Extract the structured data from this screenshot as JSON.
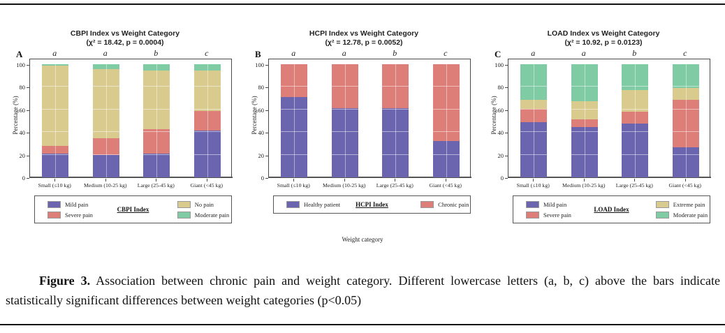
{
  "page": {
    "weight_category_label": "Weight category"
  },
  "caption": {
    "figure_label": "Figure 3.",
    "text": " Association between chronic pain and weight category. Different lowercase letters (a, b, c) above the bars indicate statistically significant differences between weight categories (p<0.05)"
  },
  "colors": {
    "purple": "#6b64ae",
    "salmon": "#dd7f78",
    "khaki": "#d9ca8e",
    "green": "#7fcba4"
  },
  "chart_data": [
    {
      "type": "bar",
      "stacked": true,
      "panel_letter": "A",
      "title": "CBPI Index vs Weight Category",
      "subtitle": "(χ² = 18.42, p = 0.0004)",
      "significance_letters": [
        "a",
        "a",
        "b",
        "c"
      ],
      "categories": [
        "Small (≤10 kg)",
        "Medium (10-25 kg)",
        "Large (25-45 kg)",
        "Giant (<45 kg)"
      ],
      "ylabel": "Percentage (%)",
      "yticks": [
        0,
        20,
        40,
        60,
        80,
        100
      ],
      "ylim": [
        0,
        100
      ],
      "grid": true,
      "series": [
        {
          "name": "Mild pain",
          "color": "purple",
          "values": [
            21,
            20,
            21,
            41.5
          ]
        },
        {
          "name": "Severe pain",
          "color": "salmon",
          "values": [
            6.5,
            14.5,
            21.5,
            17
          ]
        },
        {
          "name": "No pain",
          "color": "khaki",
          "values": [
            71,
            61,
            52,
            36
          ]
        },
        {
          "name": "Moderate pain",
          "color": "green",
          "values": [
            1.5,
            4.5,
            5.5,
            5.5
          ]
        }
      ],
      "legend": {
        "title": "CBPI Index",
        "position": "below",
        "left_column": [
          {
            "label": "Mild pain",
            "color": "purple"
          },
          {
            "label": "Severe pain",
            "color": "salmon"
          }
        ],
        "right_column": [
          {
            "label": "No pain",
            "color": "khaki"
          },
          {
            "label": "Moderate pain",
            "color": "green"
          }
        ]
      }
    },
    {
      "type": "bar",
      "stacked": true,
      "panel_letter": "B",
      "title": "HCPI Index vs Weight Category",
      "subtitle": "(χ² = 12.78, p = 0.0052)",
      "significance_letters": [
        "a",
        "a",
        "b",
        "c"
      ],
      "categories": [
        "Small (≤10 kg)",
        "Medium (10-25 kg)",
        "Large (25-45 kg)",
        "Giant (<45 kg)"
      ],
      "ylabel": "Percentage (%)",
      "yticks": [
        0,
        20,
        40,
        60,
        80,
        100
      ],
      "ylim": [
        0,
        100
      ],
      "grid": true,
      "series": [
        {
          "name": "Healthy patient",
          "color": "purple",
          "values": [
            71,
            61,
            61,
            32
          ]
        },
        {
          "name": "Chronic pain",
          "color": "salmon",
          "values": [
            29,
            39,
            39,
            68
          ]
        }
      ],
      "legend": {
        "title": "HCPI Index",
        "position": "below",
        "left_column": [
          {
            "label": "Healthy patient",
            "color": "purple"
          }
        ],
        "right_column": [
          {
            "label": "Chronic pain",
            "color": "salmon"
          }
        ]
      }
    },
    {
      "type": "bar",
      "stacked": true,
      "panel_letter": "C",
      "title": "LOAD Index vs Weight Category",
      "subtitle": "(χ² = 10.92, p = 0.0123)",
      "significance_letters": [
        "a",
        "a",
        "b",
        "c"
      ],
      "categories": [
        "Small (≤10 kg)",
        "Medium (10-25 kg)",
        "Large (25-45 kg)",
        "Giant (<45 kg)"
      ],
      "ylabel": "Percentage (%)",
      "yticks": [
        0,
        20,
        40,
        60,
        80,
        100
      ],
      "ylim": [
        0,
        100
      ],
      "grid": true,
      "series": [
        {
          "name": "Mild pain",
          "color": "purple",
          "values": [
            48.5,
            44.5,
            47.5,
            26.5
          ]
        },
        {
          "name": "Severe pain",
          "color": "salmon",
          "values": [
            12,
            7,
            10.5,
            42
          ]
        },
        {
          "name": "Extreme pain",
          "color": "khaki",
          "values": [
            8,
            15.5,
            19,
            10.5
          ]
        },
        {
          "name": "Moderate pain",
          "color": "green",
          "values": [
            31.5,
            33,
            23,
            21
          ]
        }
      ],
      "legend": {
        "title": "LOAD Index",
        "position": "below",
        "left_column": [
          {
            "label": "Mild pain",
            "color": "purple"
          },
          {
            "label": "Severe pain",
            "color": "salmon"
          }
        ],
        "right_column": [
          {
            "label": "Extreme pain",
            "color": "khaki"
          },
          {
            "label": "Moderate pain",
            "color": "green"
          }
        ]
      }
    }
  ]
}
